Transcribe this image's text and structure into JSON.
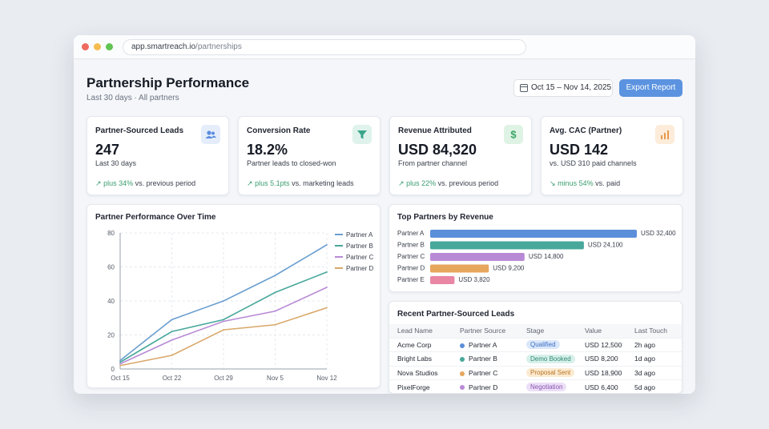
{
  "browser": {
    "url_host": "app.smartreach.io",
    "url_path": "/partnerships"
  },
  "header": {
    "title": "Partnership Performance",
    "subtitle": "Last 30 days · All partners",
    "date_range": "Oct 15 – Nov 14, 2025",
    "export_label": "Export Report"
  },
  "kpis": [
    {
      "label": "Partner-Sourced Leads",
      "value": "247",
      "note": "Last 30 days",
      "delta": "plus 34%",
      "delta_suffix": "vs. previous period",
      "arrow": "↗",
      "icon": "users-icon",
      "icon_color": "#5b8de0",
      "icon_bg": "#e5edfb"
    },
    {
      "label": "Conversion Rate",
      "value": "18.2%",
      "note": "Partner leads to closed-won",
      "delta": "plus 5.1pts",
      "delta_suffix": "vs. marketing leads",
      "arrow": "↗",
      "icon": "funnel-icon",
      "icon_color": "#3aa58a",
      "icon_bg": "#dff3ec"
    },
    {
      "label": "Revenue Attributed",
      "value": "USD 84,320",
      "note": "From partner channel",
      "delta": "plus 22%",
      "delta_suffix": "vs. previous period",
      "arrow": "↗",
      "icon": "dollar-icon",
      "icon_color": "#3aa565",
      "icon_bg": "#dff3e5"
    },
    {
      "label": "Avg. CAC (Partner)",
      "value": "USD 142",
      "note": "vs. USD 310 paid channels",
      "delta": "minus 54%",
      "delta_suffix": "vs. paid",
      "arrow": "↘",
      "icon": "bar-chart-icon",
      "icon_color": "#e69a4a",
      "icon_bg": "#fcecd9"
    }
  ],
  "line_chart": {
    "title": "Partner Performance Over Time",
    "chart_data": {
      "type": "line",
      "x": [
        "Oct 15",
        "Oct 22",
        "Oct 29",
        "Nov 5",
        "Nov 12"
      ],
      "ylim": [
        0,
        80
      ],
      "yticks": [
        0,
        20,
        40,
        60,
        80
      ],
      "grid": true,
      "legend": "top-right",
      "series": [
        {
          "name": "Partner A",
          "color": "#6b9fd0",
          "values": [
            5,
            29,
            40,
            55,
            73
          ]
        },
        {
          "name": "Partner B",
          "color": "#48a89b",
          "values": [
            4,
            22,
            29,
            45,
            57
          ]
        },
        {
          "name": "Partner C",
          "color": "#b88ad6",
          "values": [
            3,
            17,
            28,
            34,
            48
          ]
        },
        {
          "name": "Partner D",
          "color": "#d9a86a",
          "values": [
            2,
            8,
            23,
            26,
            36
          ]
        }
      ]
    }
  },
  "bar_chart": {
    "title": "Top Partners by Revenue",
    "chart_data": {
      "type": "bar",
      "orientation": "horizontal",
      "categories": [
        "Partner A",
        "Partner B",
        "Partner C",
        "Partner D",
        "Partner E"
      ],
      "values": [
        32400,
        24100,
        14800,
        9200,
        3820
      ],
      "value_labels": [
        "USD 32,400",
        "USD 24,100",
        "USD 14,800",
        "USD 9,200",
        "USD 3,820"
      ],
      "colors": [
        "#5b8fd9",
        "#48a89b",
        "#b88ad6",
        "#e6a65c",
        "#e886a3"
      ]
    }
  },
  "leads_table": {
    "title": "Recent Partner-Sourced Leads",
    "columns": [
      "Lead Name",
      "Partner Source",
      "Stage",
      "Value",
      "Last Touch"
    ],
    "rows": [
      {
        "lead": "Acme Corp",
        "partner": "Partner A",
        "partner_color": "#5b8fd9",
        "stage": "Qualified",
        "stage_bg": "#dbe8fb",
        "stage_fg": "#3b6fc0",
        "value": "USD 12,500",
        "last": "2h ago"
      },
      {
        "lead": "Bright Labs",
        "partner": "Partner B",
        "partner_color": "#48a89b",
        "stage": "Demo Booked",
        "stage_bg": "#d8f0ea",
        "stage_fg": "#2e8a74",
        "value": "USD 8,200",
        "last": "1d ago"
      },
      {
        "lead": "Nova Studios",
        "partner": "Partner C",
        "partner_color": "#e6a65c",
        "stage": "Proposal Sent",
        "stage_bg": "#fcebd2",
        "stage_fg": "#b87421",
        "value": "USD 18,900",
        "last": "3d ago"
      },
      {
        "lead": "PixelForge",
        "partner": "Partner D",
        "partner_color": "#b88ad6",
        "stage": "Negotiation",
        "stage_bg": "#ecdff7",
        "stage_fg": "#8a56b3",
        "value": "USD 6,400",
        "last": "5d ago"
      }
    ]
  }
}
